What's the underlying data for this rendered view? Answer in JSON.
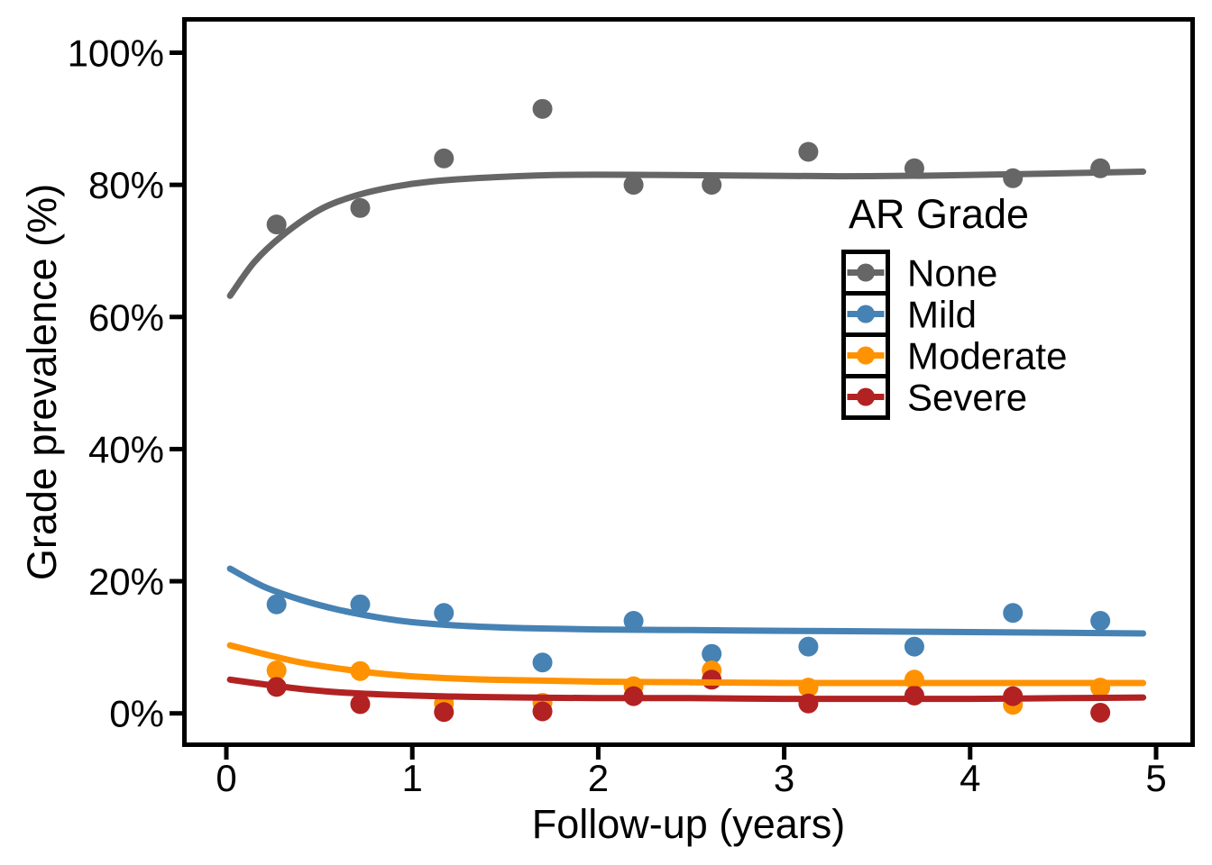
{
  "chart_data": {
    "type": "scatter",
    "title": "",
    "xlabel": "Follow-up (years)",
    "ylabel": "Grade prevalence (%)",
    "xlim": [
      0,
      5
    ],
    "ylim": [
      0,
      100
    ],
    "grid": false,
    "x_ticks": [
      0,
      1,
      2,
      3,
      4,
      5
    ],
    "x_tick_labels": [
      "0",
      "1",
      "2",
      "3",
      "4",
      "5"
    ],
    "y_ticks": [
      0,
      20,
      40,
      60,
      80,
      100
    ],
    "y_tick_labels": [
      "0%",
      "20%",
      "40%",
      "60%",
      "80%",
      "100%"
    ],
    "axis_color": "#000000",
    "background": "#FFFFFF",
    "legend": {
      "title": "AR Grade",
      "position": "inside top-right",
      "entries": [
        "None",
        "Mild",
        "Moderate",
        "Severe"
      ]
    },
    "x": [
      0.27,
      0.72,
      1.17,
      1.7,
      2.19,
      2.61,
      3.13,
      3.7,
      4.23,
      4.7
    ],
    "series": [
      {
        "name": "None",
        "color": "#666666",
        "values": [
          74,
          76.5,
          84,
          91.5,
          80,
          80,
          85,
          82.5,
          81,
          82.5
        ],
        "smooth_x": [
          0.02,
          0.15,
          0.3,
          0.5,
          0.7,
          0.9,
          1.1,
          1.4,
          1.8,
          2.3,
          2.8,
          3.3,
          3.8,
          4.4,
          4.93
        ],
        "smooth_y": [
          63.2,
          68.3,
          72.3,
          76.2,
          78.4,
          79.7,
          80.5,
          81.1,
          81.5,
          81.5,
          81.4,
          81.3,
          81.4,
          81.7,
          82.0
        ]
      },
      {
        "name": "Mild",
        "color": "#4682B4",
        "values": [
          16.5,
          16.5,
          15.2,
          7.7,
          14,
          9,
          10.1,
          10.1,
          15.2,
          14
        ],
        "smooth_x": [
          0.02,
          0.2,
          0.4,
          0.6,
          0.8,
          1.0,
          1.3,
          1.6,
          2.0,
          2.5,
          3.0,
          3.5,
          4.0,
          4.5,
          4.93
        ],
        "smooth_y": [
          21.9,
          19.2,
          17.2,
          15.7,
          14.6,
          13.8,
          13.2,
          12.9,
          12.7,
          12.6,
          12.5,
          12.4,
          12.3,
          12.2,
          12.1
        ]
      },
      {
        "name": "Moderate",
        "color": "#FF9200",
        "values": [
          6.5,
          6.4,
          1.5,
          1.6,
          4.1,
          6.5,
          3.9,
          5.1,
          1.3,
          3.9
        ],
        "smooth_x": [
          0.02,
          0.2,
          0.4,
          0.6,
          0.8,
          1.0,
          1.3,
          1.6,
          2.0,
          2.5,
          3.0,
          3.5,
          4.0,
          4.5,
          4.93
        ],
        "smooth_y": [
          10.3,
          9.0,
          7.7,
          6.8,
          6.1,
          5.6,
          5.2,
          5.0,
          4.8,
          4.7,
          4.6,
          4.6,
          4.6,
          4.6,
          4.6
        ]
      },
      {
        "name": "Severe",
        "color": "#B22222",
        "values": [
          4.0,
          1.4,
          0.2,
          0.3,
          2.6,
          5.1,
          1.5,
          2.7,
          2.6,
          0.1
        ],
        "smooth_x": [
          0.02,
          0.2,
          0.4,
          0.6,
          0.8,
          1.0,
          1.3,
          1.6,
          2.0,
          2.5,
          3.0,
          3.5,
          4.0,
          4.5,
          4.93
        ],
        "smooth_y": [
          5.1,
          4.4,
          3.7,
          3.2,
          2.9,
          2.7,
          2.5,
          2.4,
          2.3,
          2.3,
          2.2,
          2.2,
          2.2,
          2.3,
          2.4
        ]
      }
    ]
  }
}
